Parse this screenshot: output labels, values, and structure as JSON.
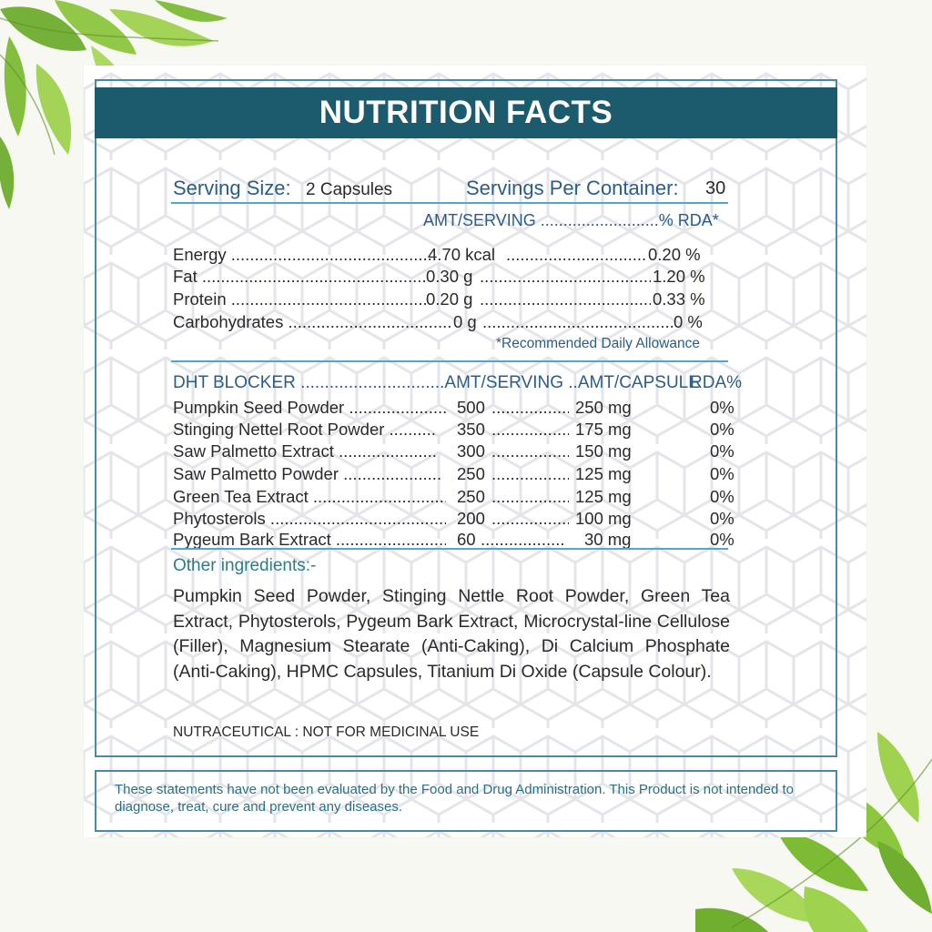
{
  "label": {
    "title": "NUTRITION FACTS",
    "serving_size_label": "Serving Size:",
    "serving_size_value": "2 Capsules",
    "servings_per_container_label": "Servings Per Container:",
    "servings_per_container_value": "30",
    "amt_rda_header": "AMT/SERVING ..........................% RDA*",
    "nutrients": [
      {
        "name": "Energy ............................................",
        "amount": "4.70 kcal",
        "sep": "..................................",
        "rda": "0.20 %"
      },
      {
        "name": "Fat ..................................................",
        "amount": "0.30 g",
        "sep": "..........................................",
        "rda": "1.20 %"
      },
      {
        "name": "Protein ..............................................",
        "amount": "0.20 g",
        "sep": ".........................................",
        "rda": "0.33 %"
      },
      {
        "name": "Carbohydrates ......................................",
        "amount": "0 g",
        "sep": "..............................................",
        "rda": "0 %"
      }
    ],
    "rda_footnote": "*Recommended Daily Allowance",
    "dht_header": "DHT BLOCKER ..............................AMT/SERVING ..AMT/CAPSULE",
    "dht_rda_header": "RDA%",
    "dht_items": [
      {
        "name": "Pumpkin Seed Powder .....................",
        "serving": "500",
        "sep": "..................",
        "capsule": "250 mg",
        "rda": "0%"
      },
      {
        "name": "Stinging Nettel Root Powder ..........",
        "serving": "350",
        "sep": "..................",
        "capsule": "175 mg",
        "rda": "0%"
      },
      {
        "name": "Saw Palmetto Extract .....................",
        "serving": "300",
        "sep": "..................",
        "capsule": "150 mg",
        "rda": "0%"
      },
      {
        "name": "Saw Palmetto Powder .....................",
        "serving": "250",
        "sep": "..................",
        "capsule": "125 mg",
        "rda": "0%"
      },
      {
        "name": "Green Tea Extract ..............................",
        "serving": "250",
        "sep": "..................",
        "capsule": "125 mg",
        "rda": "0%"
      },
      {
        "name": "Phytosterols ..........................................",
        "serving": "200",
        "sep": "..................",
        "capsule": "100 mg",
        "rda": "0%"
      },
      {
        "name": "Pygeum Bark Extract ........................",
        "serving": "60",
        "sep": ".....................",
        "capsule": "30 mg",
        "rda": "0%"
      }
    ],
    "other_ingredients_heading": "Other ingredients:-",
    "other_ingredients_text": "Pumpkin Seed Powder, Stinging Nettle Root Powder, Green Tea Extract, Phytosterols, Pygeum Bark Extract, Microcrystal-line Cellulose (Filler), Magnesium Stearate (Anti-Caking), Di Calcium Phosphate (Anti-Caking), HPMC Capsules, Titanium Di Oxide (Capsule Colour).",
    "nutraceutical_note": "NUTRACEUTICAL : NOT FOR MEDICINAL USE",
    "disclaimer": "These statements have not been evaluated by the Food and Drug Administration. This Product is not intended to diagnose, treat, cure and prevent any diseases."
  },
  "colors": {
    "title_bar": "#1c5a6e",
    "heading_blue": "#2a5d8c",
    "accent_teal": "#2a7d8e",
    "rule_blue": "#4fa7cf",
    "background": "#f7f8f2",
    "leaf_green": "#8cc63f"
  }
}
